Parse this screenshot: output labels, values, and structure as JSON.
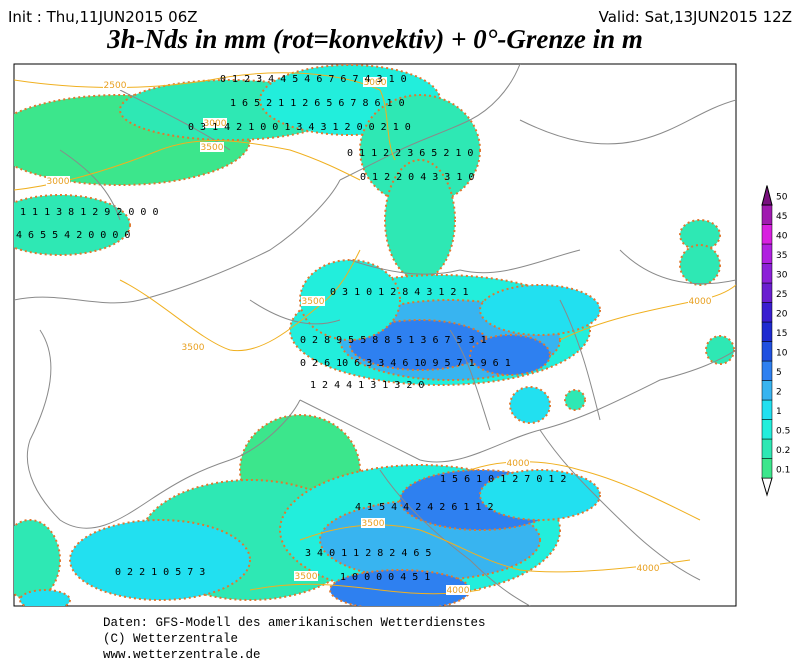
{
  "header": {
    "init": "Init : Thu,11JUN2015 06Z",
    "valid": "Valid: Sat,13JUN2015 12Z",
    "title": "3h-Nds in mm (rot=konvektiv) + 0°-Grenze in m"
  },
  "colorbar": {
    "levels": [
      0.1,
      0.2,
      0.5,
      1,
      2,
      5,
      10,
      15,
      20,
      25,
      30,
      35,
      40,
      45,
      50
    ],
    "colors": [
      "#3ce68c",
      "#2ee8b4",
      "#22eedc",
      "#22e0f0",
      "#38b4f0",
      "#2e80f0",
      "#2050e0",
      "#1e2ad0",
      "#3a1ed0",
      "#6a1ed0",
      "#8c20d8",
      "#b020e0",
      "#d820e0",
      "#a01ab0",
      "#78107e"
    ]
  },
  "contour_labels": [
    "2500",
    "3000",
    "3000",
    "3500",
    "3000",
    "3500",
    "3500",
    "4000",
    "4000",
    "3500",
    "3500",
    "4000",
    "4000"
  ],
  "precip_labels": [
    "0 1 2 3 4 4 5 4 6 7 6 7 4 3 1 0",
    "1 6 5 2 1 1 2 6 5 6 7 8 6 1 0",
    "0 3 1 4 2 1 0 0 1 3 4 3 1 2 0 0 2 1 0",
    "0 1 1 2 2 3 6 5 2 1 0",
    "0 1 2 2 0 4 3 3 1 0",
    "1 1 1 3 8 1 2 9 2 0 0 0",
    "4 6 5 5 4 2 0 0 0 0",
    "0 3 1 0 1 2 8 4 3 1 2 1",
    "0 2 8 9 5 5 8 8 5 1 3 6 7 5 3 1",
    "0 2 6 10 6 3 3 4 6 10 9 5 7 1 9 6 1",
    "1 2 4 4 1 3 1 3 2 0",
    "1 5 6 1 0 1 2 7 0 1 2",
    "4 1 5 4 4 2 4 2 6 1 1 2",
    "3 4 0 1 1 2 8 2 4 6 5",
    "0 2 2 1 0 5 7 3",
    "1 0 0 0 0 4 5 1"
  ],
  "footer": [
    "Daten: GFS-Modell des amerikanischen Wetterdienstes",
    "(C) Wetterzentrale",
    "www.wetterzentrale.de"
  ]
}
